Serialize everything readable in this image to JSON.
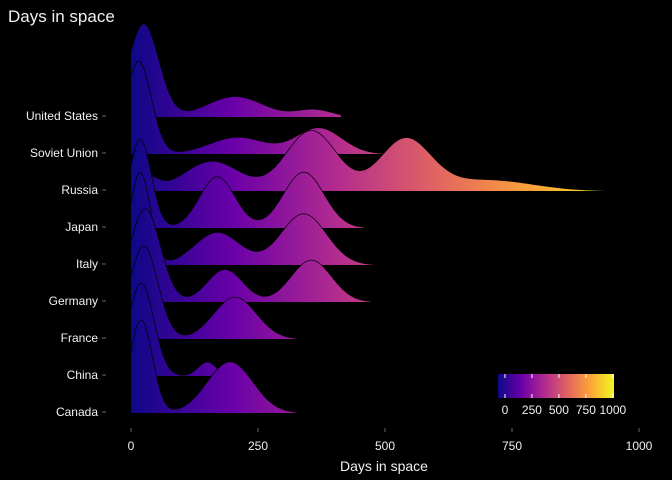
{
  "chart_data": {
    "type": "ridgeline",
    "title": "Days in space",
    "xlabel": "Days in space",
    "ylabel": "",
    "xlim": [
      0,
      1000
    ],
    "x_ticks": [
      "0",
      "250",
      "500",
      "750",
      "1000"
    ],
    "categories": [
      "Canada",
      "China",
      "France",
      "Germany",
      "Italy",
      "Japan",
      "Russia",
      "Soviet Union",
      "United States"
    ],
    "colormap": "plasma",
    "fill_range": [
      0,
      1000
    ],
    "legend": {
      "type": "colorbar",
      "position": "bottom-right",
      "ticks": [
        "0",
        "250",
        "500",
        "750",
        "1000"
      ],
      "colors": [
        "#0d0887",
        "#6a00a8",
        "#b12a90",
        "#e16462",
        "#fca636",
        "#f0f921"
      ]
    },
    "series": [
      {
        "name": "Canada",
        "max_x": 325,
        "peaks": [
          {
            "x": 20,
            "h": 1.0,
            "w": 22
          },
          {
            "x": 195,
            "h": 0.55,
            "w": 45
          }
        ]
      },
      {
        "name": "China",
        "max_x": 170,
        "peaks": [
          {
            "x": 20,
            "h": 1.0,
            "w": 25
          },
          {
            "x": 150,
            "h": 0.15,
            "w": 18
          }
        ]
      },
      {
        "name": "France",
        "max_x": 325,
        "peaks": [
          {
            "x": 25,
            "h": 1.0,
            "w": 28
          },
          {
            "x": 205,
            "h": 0.45,
            "w": 42
          }
        ]
      },
      {
        "name": "Germany",
        "max_x": 475,
        "peaks": [
          {
            "x": 28,
            "h": 1.0,
            "w": 30
          },
          {
            "x": 185,
            "h": 0.35,
            "w": 35
          },
          {
            "x": 355,
            "h": 0.45,
            "w": 40
          }
        ]
      },
      {
        "name": "Italy",
        "max_x": 480,
        "peaks": [
          {
            "x": 18,
            "h": 1.0,
            "w": 20
          },
          {
            "x": 170,
            "h": 0.35,
            "w": 45
          },
          {
            "x": 340,
            "h": 0.55,
            "w": 45
          }
        ]
      },
      {
        "name": "Japan",
        "max_x": 460,
        "peaks": [
          {
            "x": 18,
            "h": 0.95,
            "w": 22
          },
          {
            "x": 170,
            "h": 0.55,
            "w": 35
          },
          {
            "x": 340,
            "h": 0.6,
            "w": 40
          }
        ]
      },
      {
        "name": "Russia",
        "max_x": 940,
        "peaks": [
          {
            "x": 30,
            "h": 0.15,
            "w": 22
          },
          {
            "x": 160,
            "h": 0.32,
            "w": 55
          },
          {
            "x": 355,
            "h": 0.65,
            "w": 50
          },
          {
            "x": 540,
            "h": 0.55,
            "w": 50
          },
          {
            "x": 700,
            "h": 0.12,
            "w": 90
          }
        ]
      },
      {
        "name": "Soviet Union",
        "max_x": 595,
        "peaks": [
          {
            "x": 15,
            "h": 1.0,
            "w": 25
          },
          {
            "x": 210,
            "h": 0.18,
            "w": 55
          },
          {
            "x": 370,
            "h": 0.28,
            "w": 45
          }
        ]
      },
      {
        "name": "United States",
        "max_x": 415,
        "peaks": [
          {
            "x": 25,
            "h": 1.0,
            "w": 30
          },
          {
            "x": 205,
            "h": 0.22,
            "w": 55
          },
          {
            "x": 360,
            "h": 0.08,
            "w": 35
          }
        ]
      }
    ]
  }
}
